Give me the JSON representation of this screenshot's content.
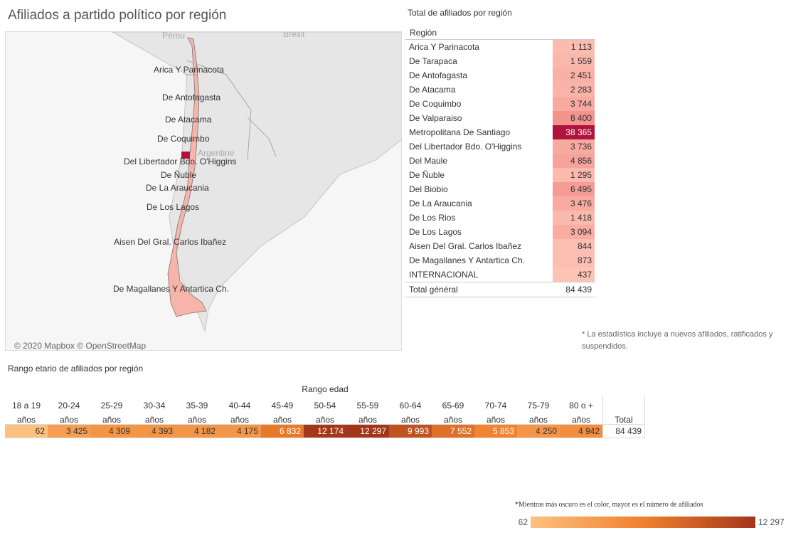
{
  "title": "Afiliados a partido político por región",
  "map": {
    "countries": [
      "Pérou",
      "Brésil",
      "Argentine"
    ],
    "labels": [
      "Arica Y Parinacota",
      "De Antofagasta",
      "De Atacama",
      "De Coquimbo",
      "Del Libertador Bdo. O'Higgins",
      "De Ñuble",
      "De La Araucania",
      "De Los Lagos",
      "Aisen Del Gral. Carlos Ibañez",
      "De Magallanes Y Antartica Ch."
    ],
    "attribution": "© 2020 Mapbox © OpenStreetMap"
  },
  "region_table": {
    "title": "Total de afiliados por región",
    "header": "Región",
    "rows": [
      {
        "name": "Arica Y Parinacota",
        "value": {
          "value": 1113,
          "label": "1 113"
        }
      },
      {
        "name": "De Tarapaca",
        "value": {
          "value": 1559,
          "label": "1 559"
        }
      },
      {
        "name": "De Antofagasta",
        "value": {
          "value": 2451,
          "label": "2 451"
        }
      },
      {
        "name": "De Atacama",
        "value": {
          "value": 2283,
          "label": "2 283"
        }
      },
      {
        "name": "De Coquimbo",
        "value": {
          "value": 3744,
          "label": "3 744"
        }
      },
      {
        "name": "De Valparaiso",
        "value": {
          "value": 8400,
          "label": "8 400"
        }
      },
      {
        "name": "Metropolitana De Santiago",
        "value": {
          "value": 38365,
          "label": "38 365"
        }
      },
      {
        "name": "Del Libertador Bdo. O'Higgins",
        "value": {
          "value": 3736,
          "label": "3 736"
        }
      },
      {
        "name": "Del Maule",
        "value": {
          "value": 4856,
          "label": "4 856"
        }
      },
      {
        "name": "De Ñuble",
        "value": {
          "value": 1295,
          "label": "1 295"
        }
      },
      {
        "name": "Del Biobio",
        "value": {
          "value": 6495,
          "label": "6 495"
        }
      },
      {
        "name": "De La Araucania",
        "value": {
          "value": 3476,
          "label": "3 476"
        }
      },
      {
        "name": "De Los Rios",
        "value": {
          "value": 1418,
          "label": "1 418"
        }
      },
      {
        "name": "De Los Lagos",
        "value": {
          "value": 3094,
          "label": "3 094"
        }
      },
      {
        "name": "Aisen Del Gral. Carlos Ibañez",
        "value": {
          "value": 844,
          "label": "844"
        }
      },
      {
        "name": "De Magallanes Y Antartica Ch.",
        "value": {
          "value": 873,
          "label": "873"
        }
      },
      {
        "name": "INTERNACIONAL",
        "value": {
          "value": 437,
          "label": "437"
        }
      }
    ],
    "total": {
      "name": "Total général",
      "value": {
        "value": 84439,
        "label": "84 439"
      }
    }
  },
  "note": "* La estadística incluye a nuevos afiliados, ratificados y suspendidos.",
  "age_table": {
    "title": "Rango etario de afiliados por región",
    "header": "Rango edad",
    "columns": [
      "18 a 19 años",
      "20-24 años",
      "25-29 años",
      "30-34 años",
      "35-39 años",
      "40-44 años",
      "45-49 años",
      "50-54 años",
      "55-59 años",
      "60-64 años",
      "65-69 años",
      "70-74 años",
      "75-79 años",
      "80 o + años"
    ],
    "values": [
      {
        "value": 62,
        "label": "62"
      },
      {
        "value": 3425,
        "label": "3 425"
      },
      {
        "value": 4309,
        "label": "4 309"
      },
      {
        "value": 4393,
        "label": "4 393"
      },
      {
        "value": 4182,
        "label": "4 182"
      },
      {
        "value": 4175,
        "label": "4 175"
      },
      {
        "value": 6832,
        "label": "6 832"
      },
      {
        "value": 12174,
        "label": "12 174"
      },
      {
        "value": 12297,
        "label": "12 297"
      },
      {
        "value": 9993,
        "label": "9 993"
      },
      {
        "value": 7552,
        "label": "7 552"
      },
      {
        "value": 5853,
        "label": "5 853"
      },
      {
        "value": 4250,
        "label": "4 250"
      },
      {
        "value": 4942,
        "label": "4 942"
      }
    ],
    "total_header": "Total",
    "total": {
      "value": 84439,
      "label": "84 439"
    }
  },
  "legend": {
    "text": "*Mientras más oscuro es el color, mayor es el número de afiliados",
    "min": {
      "value": 62,
      "label": "62"
    },
    "max": {
      "value": 12297,
      "label": "12 297"
    }
  }
}
